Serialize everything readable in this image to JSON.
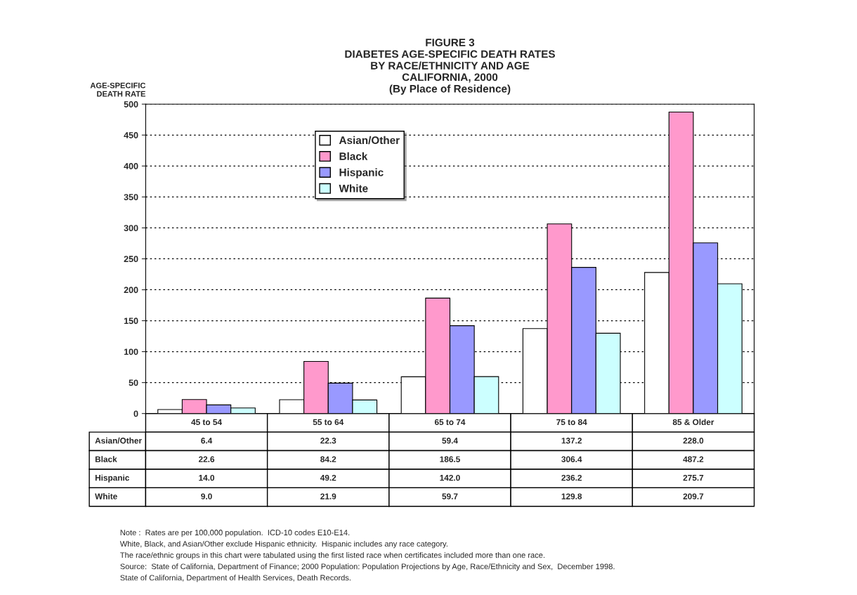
{
  "chart_data": {
    "type": "bar",
    "title": "FIGURE 3\nDIABETES AGE-SPECIFIC DEATH RATES\nBY RACE/ETHNICITY AND AGE\nCALIFORNIA, 2000\n(By Place of Residence)",
    "ylabel": "AGE-SPECIFIC\nDEATH RATE",
    "categories": [
      "45 to 54",
      "55 to 64",
      "65 to 74",
      "75 to 84",
      "85 & Older"
    ],
    "series": [
      {
        "name": "Asian/Other",
        "color": "#ffffff",
        "values": [
          6.4,
          22.3,
          59.4,
          137.2,
          228.0
        ],
        "value_labels": [
          "6.4",
          "22.3",
          "59.4",
          "137.2",
          "228.0"
        ]
      },
      {
        "name": "Black",
        "color": "#ff99cc",
        "values": [
          22.6,
          84.2,
          186.5,
          306.4,
          487.2
        ],
        "value_labels": [
          "22.6",
          "84.2",
          "186.5",
          "306.4",
          "487.2"
        ]
      },
      {
        "name": "Hispanic",
        "color": "#9999ff",
        "values": [
          14.0,
          49.2,
          142.0,
          236.2,
          275.7
        ],
        "value_labels": [
          "14.0",
          "49.2",
          "142.0",
          "236.2",
          "275.7"
        ]
      },
      {
        "name": "White",
        "color": "#ccffff",
        "values": [
          9.0,
          21.9,
          59.7,
          129.8,
          209.7
        ],
        "value_labels": [
          "9.0",
          "21.9",
          "59.7",
          "129.8",
          "209.7"
        ]
      }
    ],
    "ylim": [
      0,
      500
    ],
    "yticks": [
      0,
      50,
      100,
      150,
      200,
      250,
      300,
      350,
      400,
      450,
      500
    ],
    "grid": "y",
    "legend": "top left",
    "annotations": [
      "Note :  Rates are per 100,000 population.  ICD-10 codes E10-E14.",
      "White, Black, and Asian/Other exclude Hispanic ethnicity.  Hispanic includes any race category.",
      "The race/ethnic groups in this chart were tabulated using the first listed race when certificates included more than one race.",
      "Source:  State of California, Department of Finance; 2000 Population: Population Projections by Age, Race/Ethnicity and Sex,  December 1998.",
      "State of California, Department of Health Services, Death Records."
    ]
  }
}
